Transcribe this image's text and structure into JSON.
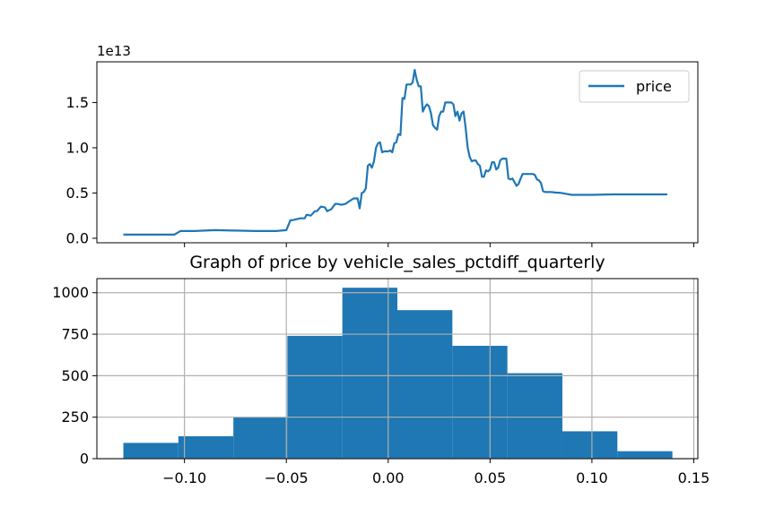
{
  "colors": {
    "series": "#1f77b4",
    "axis": "#000000",
    "grid": "#b0b0b0",
    "legend_border": "#cccccc"
  },
  "chart_data": [
    {
      "type": "line",
      "title": "",
      "xlabel": "",
      "ylabel": "",
      "offset_text": "1e13",
      "xlim": [
        -0.143,
        0.152
      ],
      "ylim": [
        -0.05,
        1.95
      ],
      "grid": false,
      "legend": {
        "placement": "top-right",
        "entries": [
          "price"
        ]
      },
      "yticks": [
        {
          "value": 0.0,
          "label": "0.0"
        },
        {
          "value": 0.5,
          "label": "0.5"
        },
        {
          "value": 1.0,
          "label": "1.0"
        },
        {
          "value": 1.5,
          "label": "1.5"
        }
      ],
      "xticks": [
        -0.1,
        -0.05,
        0.0,
        0.05,
        0.1,
        0.15
      ],
      "series": [
        {
          "name": "price",
          "x": [
            -0.13,
            -0.105,
            -0.102,
            -0.095,
            -0.085,
            -0.075,
            -0.065,
            -0.055,
            -0.05,
            -0.048,
            -0.047,
            -0.045,
            -0.043,
            -0.041,
            -0.04,
            -0.038,
            -0.036,
            -0.035,
            -0.033,
            -0.031,
            -0.03,
            -0.028,
            -0.026,
            -0.025,
            -0.023,
            -0.021,
            -0.019,
            -0.017,
            -0.015,
            -0.014,
            -0.013,
            -0.012,
            -0.011,
            -0.01,
            -0.009,
            -0.008,
            -0.007,
            -0.006,
            -0.005,
            -0.004,
            -0.003,
            -0.002,
            -0.001,
            0.0,
            0.001,
            0.002,
            0.003,
            0.004,
            0.005,
            0.006,
            0.007,
            0.008,
            0.009,
            0.01,
            0.011,
            0.012,
            0.013,
            0.014,
            0.015,
            0.016,
            0.017,
            0.018,
            0.019,
            0.02,
            0.021,
            0.022,
            0.023,
            0.024,
            0.025,
            0.026,
            0.027,
            0.028,
            0.029,
            0.03,
            0.031,
            0.032,
            0.033,
            0.034,
            0.035,
            0.036,
            0.037,
            0.038,
            0.039,
            0.04,
            0.041,
            0.042,
            0.043,
            0.044,
            0.045,
            0.046,
            0.047,
            0.048,
            0.049,
            0.05,
            0.051,
            0.052,
            0.053,
            0.054,
            0.055,
            0.056,
            0.057,
            0.058,
            0.059,
            0.06,
            0.061,
            0.062,
            0.063,
            0.064,
            0.065,
            0.066,
            0.067,
            0.068,
            0.069,
            0.07,
            0.071,
            0.072,
            0.073,
            0.074,
            0.075,
            0.076,
            0.077,
            0.078,
            0.079,
            0.08,
            0.082,
            0.085,
            0.09,
            0.095,
            0.1,
            0.11,
            0.12,
            0.13,
            0.137
          ],
          "values": [
            0.04,
            0.04,
            0.08,
            0.08,
            0.09,
            0.085,
            0.08,
            0.08,
            0.09,
            0.2,
            0.2,
            0.21,
            0.22,
            0.22,
            0.26,
            0.25,
            0.3,
            0.3,
            0.35,
            0.34,
            0.3,
            0.32,
            0.38,
            0.38,
            0.37,
            0.38,
            0.41,
            0.44,
            0.44,
            0.33,
            0.5,
            0.51,
            0.55,
            0.8,
            0.82,
            0.78,
            0.85,
            1.0,
            1.05,
            1.06,
            0.95,
            0.96,
            0.96,
            0.96,
            0.97,
            0.95,
            1.05,
            1.06,
            1.15,
            1.14,
            1.55,
            1.54,
            1.7,
            1.7,
            1.7,
            1.72,
            1.86,
            1.75,
            1.68,
            1.68,
            1.4,
            1.45,
            1.48,
            1.46,
            1.38,
            1.25,
            1.22,
            1.2,
            1.35,
            1.4,
            1.4,
            1.5,
            1.5,
            1.5,
            1.5,
            1.48,
            1.35,
            1.4,
            1.3,
            1.38,
            1.4,
            1.22,
            1.0,
            0.9,
            0.85,
            0.86,
            0.86,
            0.82,
            0.8,
            0.68,
            0.68,
            0.75,
            0.74,
            0.76,
            0.84,
            0.84,
            0.76,
            0.78,
            0.86,
            0.88,
            0.88,
            0.88,
            0.66,
            0.65,
            0.66,
            0.62,
            0.58,
            0.6,
            0.66,
            0.71,
            0.71,
            0.71,
            0.71,
            0.71,
            0.71,
            0.7,
            0.65,
            0.64,
            0.61,
            0.52,
            0.51,
            0.51,
            0.51,
            0.51,
            0.505,
            0.5,
            0.48,
            0.48,
            0.48,
            0.485,
            0.485,
            0.485,
            0.485
          ]
        }
      ]
    },
    {
      "type": "bar",
      "title": "Graph of price by vehicle_sales_pctdiff_quarterly",
      "xlabel": "",
      "ylabel": "",
      "xlim": [
        -0.143,
        0.152
      ],
      "ylim": [
        0,
        1085
      ],
      "grid": true,
      "bin_edges": [
        -0.13,
        -0.103,
        -0.076,
        -0.0495,
        -0.0225,
        0.0045,
        0.0315,
        0.0585,
        0.0855,
        0.1125,
        0.1395
      ],
      "values": [
        95,
        135,
        250,
        740,
        1030,
        895,
        680,
        515,
        165,
        45
      ],
      "xticks": [
        {
          "value": -0.1,
          "label": "−0.10"
        },
        {
          "value": -0.05,
          "label": "−0.05"
        },
        {
          "value": 0.0,
          "label": "0.00"
        },
        {
          "value": 0.05,
          "label": "0.05"
        },
        {
          "value": 0.1,
          "label": "0.10"
        },
        {
          "value": 0.15,
          "label": "0.15"
        }
      ],
      "yticks": [
        {
          "value": 0,
          "label": "0"
        },
        {
          "value": 250,
          "label": "250"
        },
        {
          "value": 500,
          "label": "500"
        },
        {
          "value": 750,
          "label": "750"
        },
        {
          "value": 1000,
          "label": "1000"
        }
      ]
    }
  ]
}
